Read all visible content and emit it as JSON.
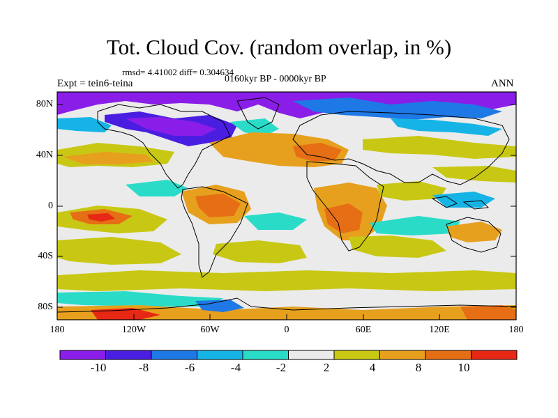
{
  "title": "Tot. Cloud Cov. (random overlap, in %)",
  "stats": "rmsd= 4.41002 diff= 0.304634",
  "period": "0160kyr BP - 0000kyr BP",
  "experiment": "Expt = tein6-teina",
  "season": "ANN",
  "lat_labels": [
    "80N",
    "40N",
    "0",
    "40S",
    "80S"
  ],
  "lon_labels": [
    "180",
    "120W",
    "60W",
    "0",
    "60E",
    "120E",
    "180"
  ],
  "colorbar": {
    "labels": [
      "-10",
      "-8",
      "-6",
      "-4",
      "-2",
      "2",
      "4",
      "8",
      "10"
    ],
    "colors": [
      "#8a1ee8",
      "#4a1ee0",
      "#1e78e6",
      "#16b4e6",
      "#2adcc8",
      "#ebebeb",
      "#c8c814",
      "#e6a01e",
      "#e66e14",
      "#e62814"
    ]
  },
  "regions": [
    {
      "name": "arctic-negative-band",
      "color": "#8a1ee8"
    },
    {
      "name": "north-america-negative",
      "color": "#4a1ee0"
    },
    {
      "name": "south-america-positive",
      "color": "#e66e14"
    },
    {
      "name": "africa-positive",
      "color": "#e6a01e"
    },
    {
      "name": "southern-ocean-positive",
      "color": "#e62814"
    }
  ]
}
